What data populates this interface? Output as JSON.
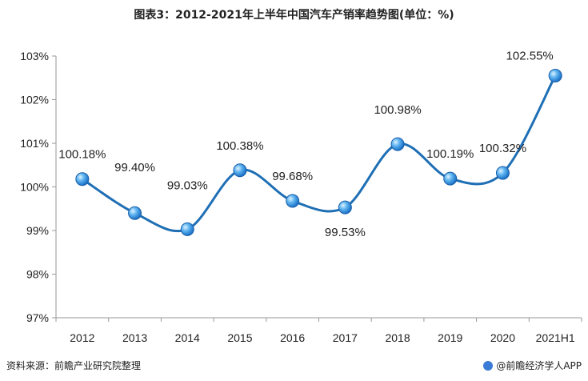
{
  "title": "图表3：2012-2021年上半年中国汽车产销率趋势图(单位：%)",
  "source": "资料来源：前瞻产业研究院整理",
  "brand": "@前瞻经济学人APP",
  "colors": {
    "line": "#1f6fb5",
    "point": "#3a9be6",
    "axis": "#999999"
  },
  "chart_data": {
    "type": "line",
    "title": "图表3：2012-2021年上半年中国汽车产销率趋势图(单位：%)",
    "xlabel": "",
    "ylabel": "",
    "categories": [
      "2012",
      "2013",
      "2014",
      "2015",
      "2016",
      "2017",
      "2018",
      "2019",
      "2020",
      "2021H1"
    ],
    "series": [
      {
        "values": [
          100.18,
          99.4,
          99.03,
          100.38,
          99.68,
          99.53,
          100.98,
          100.19,
          100.32,
          102.55
        ]
      }
    ],
    "data_labels": [
      "100.18%",
      "99.40%",
      "99.03%",
      "100.38%",
      "99.68%",
      "99.53%",
      "100.98%",
      "100.19%",
      "100.32%",
      "102.55%"
    ],
    "y_ticks": [
      97,
      98,
      99,
      100,
      101,
      102,
      103
    ],
    "y_tick_labels": [
      "97%",
      "98%",
      "99%",
      "100%",
      "101%",
      "102%",
      "103%"
    ],
    "ylim": [
      97,
      103
    ],
    "grid": false,
    "legend": "none"
  }
}
